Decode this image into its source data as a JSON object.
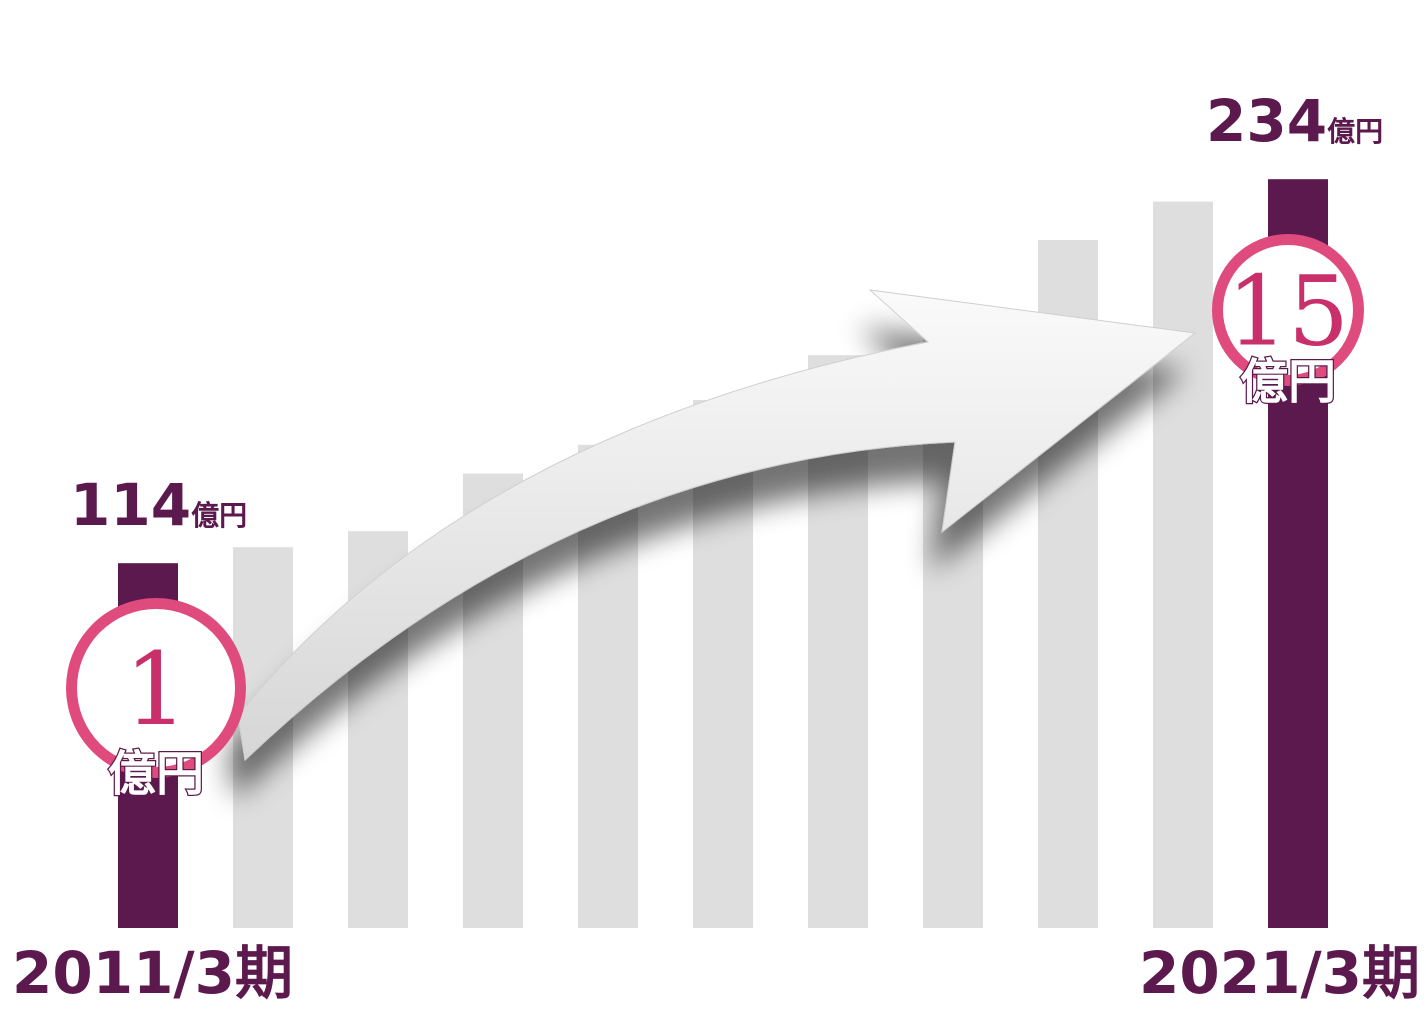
{
  "chart_data": {
    "type": "bar",
    "categories": [
      "2011/3期",
      "",
      "",
      "",
      "",
      "",
      "",
      "",
      "",
      "",
      "2021/3期"
    ],
    "values": [
      114,
      119,
      124,
      142,
      151,
      165,
      179,
      194,
      215,
      227,
      234
    ],
    "ylim": [
      0,
      250
    ],
    "highlighted_indices": [
      0,
      10
    ],
    "annotations": {
      "first": {
        "value": "114",
        "unit": "億円"
      },
      "last": {
        "value": "234",
        "unit": "億円"
      }
    },
    "badges": {
      "start": {
        "number": "1",
        "unit": "億円"
      },
      "end": {
        "number": "15",
        "unit": "億円"
      }
    },
    "grid": false,
    "legend": "none"
  },
  "colors": {
    "highlight_bar": "#5c194d",
    "muted_bar": "#dedede",
    "badge_ring": "#df4b7c",
    "badge_number": "#c9306b",
    "label_text": "#5c194d",
    "arrow": "#ededed"
  }
}
